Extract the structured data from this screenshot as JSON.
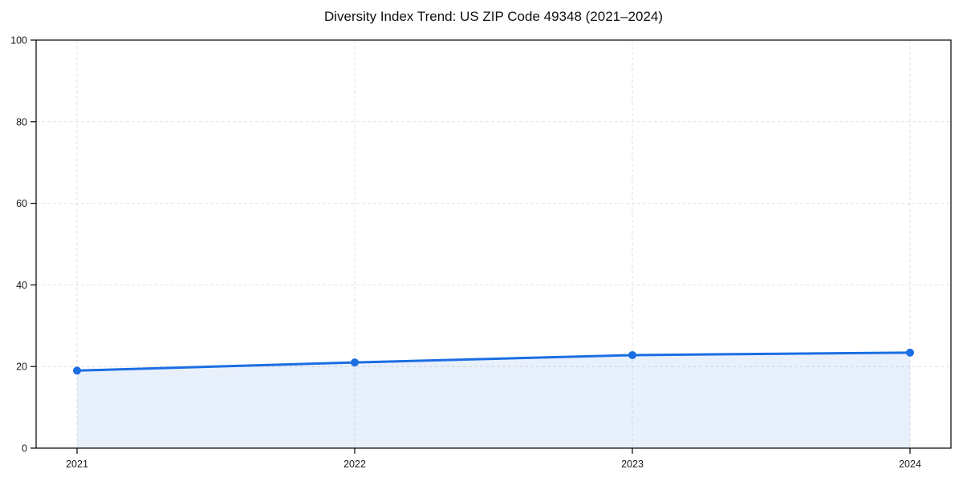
{
  "page": {
    "background": "#ffffff"
  },
  "chart_data": {
    "type": "area",
    "title": "Diversity Index Trend: US ZIP Code 49348 (2021–2024)",
    "categories": [
      "2021",
      "2022",
      "2023",
      "2024"
    ],
    "values": [
      19,
      21,
      22.8,
      23.4
    ],
    "xlabel": "",
    "ylabel": "",
    "ylim": [
      0,
      100
    ],
    "yticks": [
      0,
      20,
      40,
      60,
      80,
      100
    ],
    "grid": "dashed",
    "legend_position": "none",
    "colors": {
      "line": "#1b6ee3",
      "fill_opacity": 0.1,
      "grid": "#e2e2e2",
      "spine": "#000000",
      "tick_label": "#1a1a1a",
      "title": "#111111"
    }
  }
}
